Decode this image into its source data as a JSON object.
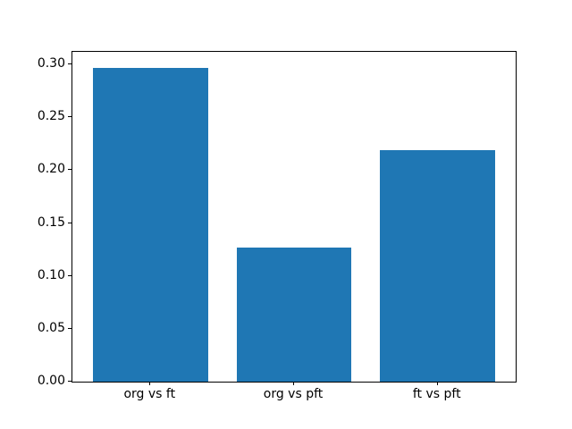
{
  "chart_data": {
    "type": "bar",
    "title": "",
    "xlabel": "",
    "ylabel": "",
    "categories": [
      "org vs ft",
      "org vs pft",
      "ft vs pft"
    ],
    "values": [
      0.297,
      0.127,
      0.219
    ],
    "yticks": [
      0.0,
      0.05,
      0.1,
      0.15,
      0.2,
      0.25,
      0.3
    ],
    "ytick_labels": [
      "0.00",
      "0.05",
      "0.10",
      "0.15",
      "0.20",
      "0.25",
      "0.30"
    ],
    "ylim": [
      0,
      0.312
    ],
    "xlim": [
      -0.543,
      2.543
    ],
    "bar_width_data_units": 0.8,
    "bar_color": "#1f77b4",
    "axes_edge_color": "#000000",
    "background_color": "#ffffff",
    "grid": false,
    "legend_position": "none"
  }
}
